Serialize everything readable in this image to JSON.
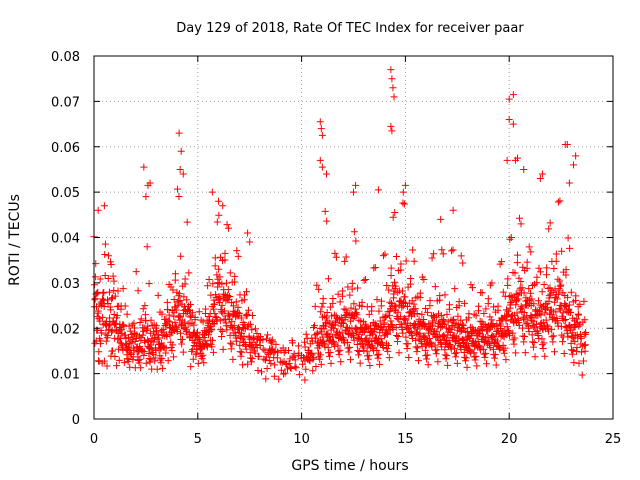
{
  "chart_data": {
    "type": "scatter",
    "title": "Day 129 of 2018, Rate Of TEC Index for receiver paar",
    "xlabel": "GPS time / hours",
    "ylabel": "ROTI / TECUs",
    "xlim": [
      0,
      25
    ],
    "ylim": [
      0,
      0.08
    ],
    "x_ticks": [
      0,
      5,
      10,
      15,
      20,
      25
    ],
    "x_tick_labels": [
      "0",
      "5",
      "10",
      "15",
      "20",
      "25"
    ],
    "y_ticks": [
      0,
      0.01,
      0.02,
      0.03,
      0.04,
      0.05,
      0.06,
      0.07,
      0.08
    ],
    "y_tick_labels": [
      "0",
      "0.01",
      "0.02",
      "0.03",
      "0.04",
      "0.05",
      "0.06",
      "0.07",
      "0.08"
    ],
    "grid": true,
    "marker": "plus",
    "marker_color": "#ff0000",
    "series": [
      {
        "name": "ROTI",
        "envelope": {
          "x": [
            0,
            0.5,
            1,
            1.5,
            2,
            2.5,
            3,
            3.5,
            4,
            4.5,
            5,
            5.5,
            6,
            6.5,
            7,
            7.5,
            8,
            8.5,
            9,
            9.5,
            10,
            10.5,
            11,
            11.5,
            12,
            12.5,
            13,
            13.5,
            14,
            14.5,
            15,
            15.5,
            16,
            16.5,
            17,
            17.5,
            18,
            18.5,
            19,
            19.5,
            20,
            20.5,
            21,
            21.5,
            22,
            22.5,
            23,
            23.5
          ],
          "low": [
            0.007,
            0.007,
            0.008,
            0.008,
            0.007,
            0.007,
            0.006,
            0.006,
            0.008,
            0.009,
            0.009,
            0.008,
            0.008,
            0.006,
            0.006,
            0.006,
            0.006,
            0.006,
            0.005,
            0.006,
            0.007,
            0.007,
            0.007,
            0.007,
            0.007,
            0.007,
            0.007,
            0.007,
            0.007,
            0.007,
            0.007,
            0.007,
            0.007,
            0.007,
            0.007,
            0.007,
            0.007,
            0.007,
            0.007,
            0.007,
            0.007,
            0.007,
            0.007,
            0.007,
            0.007,
            0.007,
            0.007,
            0.006
          ],
          "mid": [
            0.022,
            0.021,
            0.02,
            0.016,
            0.015,
            0.017,
            0.015,
            0.018,
            0.022,
            0.021,
            0.015,
            0.018,
            0.026,
            0.022,
            0.019,
            0.017,
            0.015,
            0.014,
            0.012,
            0.012,
            0.013,
            0.014,
            0.018,
            0.018,
            0.019,
            0.02,
            0.017,
            0.017,
            0.018,
            0.024,
            0.021,
            0.02,
            0.017,
            0.019,
            0.017,
            0.018,
            0.016,
            0.017,
            0.018,
            0.017,
            0.021,
            0.024,
            0.022,
            0.02,
            0.023,
            0.024,
            0.019,
            0.017
          ],
          "high": [
            0.044,
            0.041,
            0.034,
            0.028,
            0.038,
            0.047,
            0.032,
            0.028,
            0.052,
            0.044,
            0.026,
            0.03,
            0.046,
            0.043,
            0.036,
            0.025,
            0.02,
            0.018,
            0.015,
            0.018,
            0.018,
            0.021,
            0.05,
            0.038,
            0.034,
            0.043,
            0.031,
            0.034,
            0.037,
            0.047,
            0.049,
            0.033,
            0.031,
            0.04,
            0.036,
            0.04,
            0.031,
            0.028,
            0.029,
            0.034,
            0.04,
            0.045,
            0.038,
            0.033,
            0.045,
            0.05,
            0.036,
            0.026
          ],
          "density": [
            1.0,
            1.0,
            1.0,
            0.9,
            0.9,
            0.9,
            0.9,
            0.9,
            1.0,
            1.0,
            0.9,
            1.0,
            1.0,
            1.0,
            1.0,
            0.9,
            0.7,
            0.6,
            0.4,
            0.4,
            0.5,
            0.8,
            1.0,
            1.0,
            1.0,
            1.0,
            1.0,
            1.0,
            1.0,
            1.0,
            1.0,
            1.0,
            1.0,
            1.0,
            1.0,
            1.0,
            1.0,
            1.0,
            1.0,
            1.0,
            1.0,
            1.0,
            1.0,
            1.0,
            1.0,
            1.0,
            1.0,
            0.8
          ]
        },
        "peaks": [
          {
            "x": 14.3,
            "y": 0.077
          },
          {
            "x": 14.35,
            "y": 0.075
          },
          {
            "x": 14.4,
            "y": 0.073
          },
          {
            "x": 14.45,
            "y": 0.071
          },
          {
            "x": 14.3,
            "y": 0.0645
          },
          {
            "x": 14.35,
            "y": 0.0635
          },
          {
            "x": 20.0,
            "y": 0.0705
          },
          {
            "x": 20.2,
            "y": 0.0715
          },
          {
            "x": 20.0,
            "y": 0.066
          },
          {
            "x": 20.2,
            "y": 0.065
          },
          {
            "x": 4.1,
            "y": 0.063
          },
          {
            "x": 4.2,
            "y": 0.059
          },
          {
            "x": 4.15,
            "y": 0.055
          },
          {
            "x": 4.3,
            "y": 0.054
          },
          {
            "x": 10.9,
            "y": 0.0655
          },
          {
            "x": 10.95,
            "y": 0.064
          },
          {
            "x": 11.0,
            "y": 0.0625
          },
          {
            "x": 10.9,
            "y": 0.057
          },
          {
            "x": 11.0,
            "y": 0.0555
          },
          {
            "x": 11.2,
            "y": 0.054
          },
          {
            "x": 22.7,
            "y": 0.0605
          },
          {
            "x": 22.8,
            "y": 0.0605
          },
          {
            "x": 23.2,
            "y": 0.058
          },
          {
            "x": 23.1,
            "y": 0.056
          },
          {
            "x": 22.9,
            "y": 0.052
          },
          {
            "x": 20.4,
            "y": 0.0575
          },
          {
            "x": 20.3,
            "y": 0.057
          },
          {
            "x": 19.9,
            "y": 0.057
          },
          {
            "x": 20.7,
            "y": 0.055
          },
          {
            "x": 2.4,
            "y": 0.0555
          },
          {
            "x": 2.6,
            "y": 0.0515
          },
          {
            "x": 2.7,
            "y": 0.052
          },
          {
            "x": 2.5,
            "y": 0.049
          },
          {
            "x": 5.7,
            "y": 0.05
          },
          {
            "x": 6.0,
            "y": 0.048
          },
          {
            "x": 6.2,
            "y": 0.047
          },
          {
            "x": 12.6,
            "y": 0.0515
          },
          {
            "x": 12.5,
            "y": 0.05
          },
          {
            "x": 13.7,
            "y": 0.0505
          },
          {
            "x": 15.0,
            "y": 0.0515
          },
          {
            "x": 14.9,
            "y": 0.05
          },
          {
            "x": 21.6,
            "y": 0.054
          },
          {
            "x": 21.5,
            "y": 0.053
          },
          {
            "x": 0.2,
            "y": 0.046
          },
          {
            "x": 0.5,
            "y": 0.047
          },
          {
            "x": 17.3,
            "y": 0.046
          },
          {
            "x": 16.7,
            "y": 0.044
          },
          {
            "x": 7.4,
            "y": 0.041
          },
          {
            "x": 7.5,
            "y": 0.039
          }
        ]
      }
    ]
  }
}
